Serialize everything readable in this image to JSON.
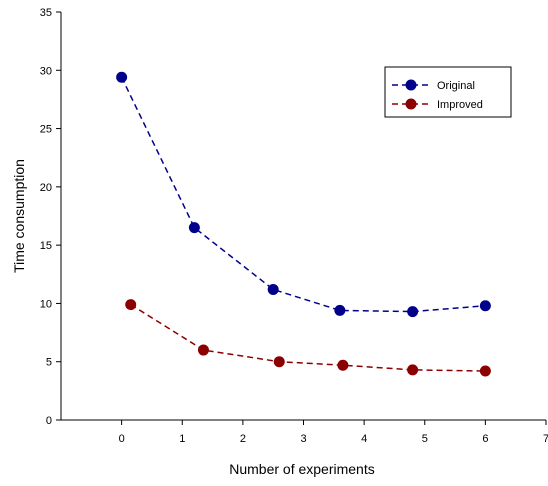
{
  "chart_data": {
    "type": "line",
    "title": "",
    "xlabel": "Number of experiments",
    "ylabel": "Time consumption",
    "xlim": [
      -1,
      7
    ],
    "ylim": [
      0,
      35
    ],
    "xticks": [
      "0",
      "1",
      "2",
      "3",
      "4",
      "5",
      "6",
      "7"
    ],
    "yticks": [
      "0",
      "5",
      "10",
      "15",
      "20",
      "25",
      "30",
      "35"
    ],
    "grid": false,
    "legend_position": "top-right",
    "series": [
      {
        "name": "Original",
        "color": "#00008b",
        "line_style": "dashed",
        "marker": "circle",
        "x": [
          0,
          1.2,
          2.5,
          3.6,
          4.8,
          6
        ],
        "y": [
          29.4,
          16.5,
          11.2,
          9.4,
          9.3,
          9.8
        ]
      },
      {
        "name": "Improved",
        "color": "#8b0000",
        "line_style": "dashed",
        "marker": "circle",
        "x": [
          0.15,
          1.35,
          2.6,
          3.65,
          4.8,
          6
        ],
        "y": [
          9.9,
          6.0,
          5.0,
          4.7,
          4.3,
          4.2
        ]
      }
    ]
  }
}
